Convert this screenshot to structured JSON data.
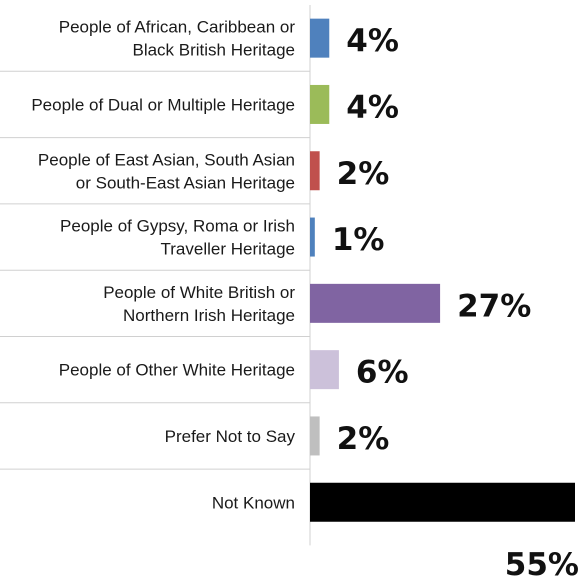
{
  "chart_data": {
    "type": "bar",
    "orientation": "horizontal",
    "categories": [
      [
        "People of African, Caribbean or",
        "Black British Heritage"
      ],
      [
        "People of Dual or Multiple Heritage"
      ],
      [
        "People of East Asian, South Asian",
        "or South-East Asian Heritage"
      ],
      [
        "People of Gypsy, Roma or Irish",
        "Traveller Heritage"
      ],
      [
        "People of White British or",
        "Northern Irish Heritage"
      ],
      [
        "People of Other White Heritage"
      ],
      [
        "Prefer Not to Say"
      ],
      [
        "Not Known"
      ]
    ],
    "values": [
      4,
      4,
      2,
      1,
      27,
      6,
      2,
      55
    ],
    "value_labels": [
      "4%",
      "4%",
      "2%",
      "1%",
      "27%",
      "6%",
      "2%",
      "55%"
    ],
    "colors": [
      "#4f81bd",
      "#9bbb59",
      "#c0504d",
      "#4f81bd",
      "#8064a2",
      "#ccc1da",
      "#bfbfbf",
      "#000000"
    ],
    "xlim": [
      0,
      55
    ],
    "grid": false,
    "legend": "none"
  }
}
